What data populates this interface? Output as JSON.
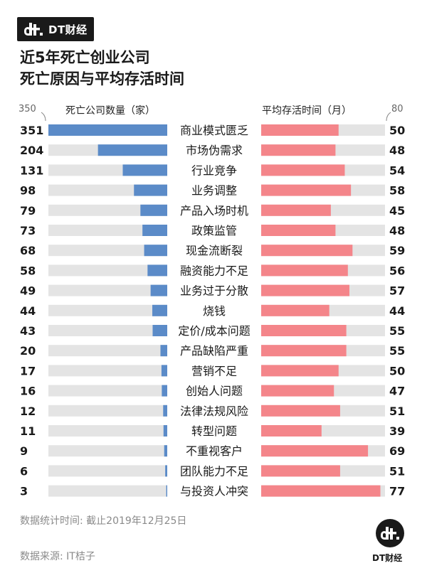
{
  "brand": {
    "name": "DT财经",
    "logo_icon": "dt-logo-icon"
  },
  "title_lines": [
    "近5年死亡创业公司",
    "死亡原因与平均存活时间"
  ],
  "chart_data": {
    "type": "bar",
    "categories": [
      "商业模式匮乏",
      "市场伪需求",
      "行业竞争",
      "业务调整",
      "产品入场时机",
      "政策监管",
      "现金流断裂",
      "融资能力不足",
      "业务过于分散",
      "烧钱",
      "定价/成本问题",
      "产品缺陷严重",
      "营销不足",
      "创始人问题",
      "法律法规风险",
      "转型问题",
      "不重视客户",
      "团队能力不足",
      "与投资人冲突"
    ],
    "series": [
      {
        "name": "死亡公司数量（家）",
        "values": [
          351,
          204,
          131,
          98,
          79,
          73,
          68,
          58,
          49,
          44,
          43,
          20,
          17,
          16,
          12,
          11,
          9,
          6,
          3
        ],
        "color": "#5b8bc8",
        "max": 350,
        "axis_label": "350"
      },
      {
        "name": "平均存活时间（月）",
        "values": [
          50,
          48,
          54,
          58,
          45,
          48,
          59,
          56,
          57,
          44,
          55,
          55,
          50,
          47,
          51,
          39,
          69,
          51,
          77
        ],
        "color": "#f4858a",
        "max": 80,
        "axis_label": "80"
      }
    ],
    "track_color": "#e4e4e4"
  },
  "footnotes": {
    "stats_time": "数据统计时间: 截止2019年12月25日",
    "source": "数据来源: IT桔子"
  }
}
